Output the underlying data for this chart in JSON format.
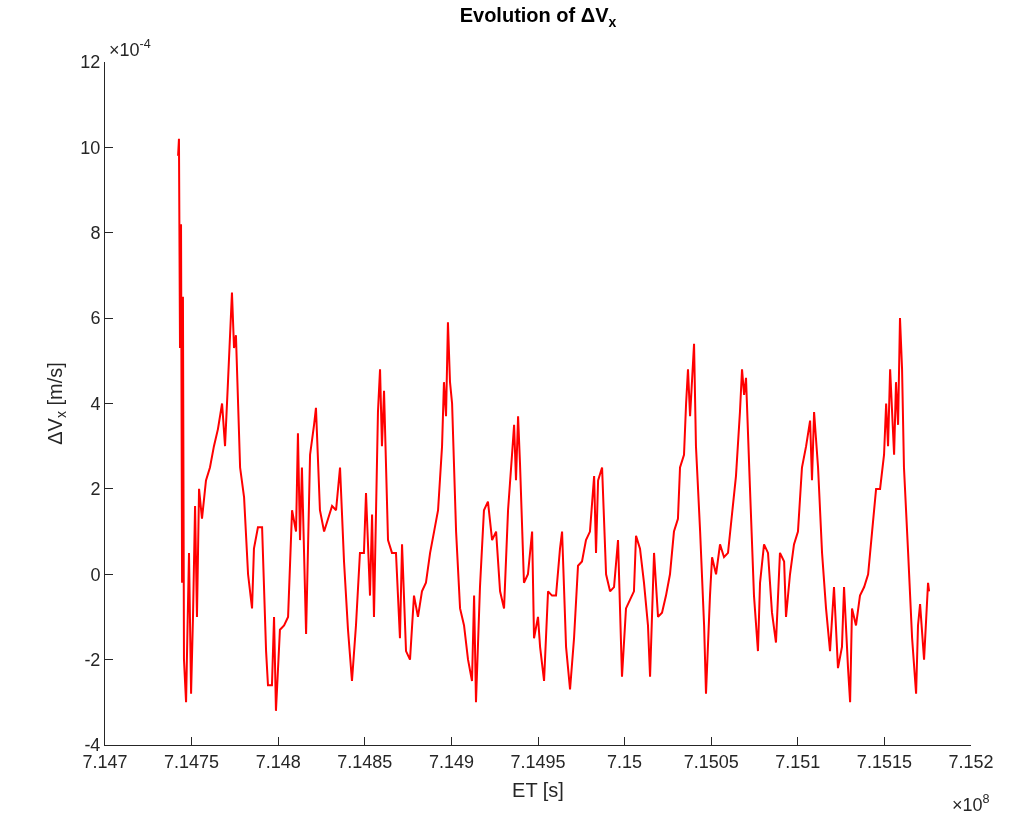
{
  "chart_data": {
    "type": "line",
    "title": "Evolution of ΔV$_{x}$",
    "xlabel": "ET [s]",
    "ylabel": "ΔV$_{x}$ [m/s]",
    "annotations": [
      "×10$^{-4}$",
      "×10$^{8}$"
    ],
    "xlim": [
      7.147,
      7.152
    ],
    "xticks": [
      7.147,
      7.1475,
      7.148,
      7.1485,
      7.149,
      7.1495,
      7.15,
      7.1505,
      7.151,
      7.1515,
      7.152
    ],
    "ylim": [
      -4,
      12
    ],
    "yticks": [
      -4,
      -2,
      0,
      2,
      4,
      6,
      8,
      10,
      12
    ],
    "series": [
      {
        "color": "#ff0000",
        "x": [
          7.147422,
          7.147427,
          7.147433,
          7.147439,
          7.147445,
          7.14745,
          7.147456,
          7.147468,
          7.147485,
          7.147497,
          7.147508,
          7.14752,
          7.147531,
          7.147543,
          7.14756,
          7.147583,
          7.147606,
          7.147629,
          7.147652,
          7.147676,
          7.147693,
          7.14771,
          7.147733,
          7.147745,
          7.147756,
          7.14778,
          7.147803,
          7.147826,
          7.147849,
          7.14786,
          7.147883,
          7.147907,
          7.14793,
          7.147941,
          7.147964,
          7.147976,
          7.147987,
          7.14801,
          7.148034,
          7.148057,
          7.14808,
          7.148103,
          7.148114,
          7.148126,
          7.148137,
          7.148161,
          7.148184,
          7.148207,
          7.148218,
          7.148241,
          7.148265,
          7.148288,
          7.148311,
          7.148334,
          7.148357,
          7.14838,
          7.148403,
          7.148426,
          7.148449,
          7.148472,
          7.148495,
          7.148507,
          7.14853,
          7.148542,
          7.148553,
          7.148576,
          7.148588,
          7.148599,
          7.148611,
          7.148634,
          7.148657,
          7.14868,
          7.148703,
          7.148715,
          7.148738,
          7.148761,
          7.148784,
          7.148807,
          7.14883,
          7.148853,
          7.148877,
          7.1489,
          7.148923,
          7.148946,
          7.148957,
          7.148969,
          7.14898,
          7.148992,
          7.149004,
          7.149027,
          7.14905,
          7.149073,
          7.149096,
          7.149119,
          7.149131,
          7.149142,
          7.149165,
          7.149188,
          7.149211,
          7.149235,
          7.149258,
          7.149281,
          7.149304,
          7.149327,
          7.14935,
          7.149362,
          7.149373,
          7.149385,
          7.149396,
          7.149419,
          7.149442,
          7.149466,
          7.149477,
          7.1495,
          7.149512,
          7.149535,
          7.149558,
          7.149581,
          7.149604,
          7.149627,
          7.149639,
          7.149662,
          7.149685,
          7.149708,
          7.149731,
          7.149754,
          7.149777,
          7.1498,
          7.149824,
          7.149835,
          7.149847,
          7.14987,
          7.149893,
          7.149916,
          7.149939,
          7.149962,
          7.149985,
          7.150008,
          7.150031,
          7.150054,
          7.150066,
          7.150089,
          7.150112,
          7.150135,
          7.150147,
          7.15017,
          7.150193,
          7.150216,
          7.150239,
          7.150262,
          7.150285,
          7.150308,
          7.15032,
          7.150343,
          7.150355,
          7.150366,
          7.150378,
          7.150401,
          7.150412,
          7.150436,
          7.150459,
          7.15047,
          7.150493,
          7.150505,
          7.150528,
          7.150551,
          7.150574,
          7.150597,
          7.15062,
          7.150643,
          7.150666,
          7.150678,
          7.15069,
          7.150701,
          7.150724,
          7.150747,
          7.15077,
          7.150782,
          7.150805,
          7.150828,
          7.150851,
          7.150874,
          7.150897,
          7.150921,
          7.150932,
          7.150955,
          7.150978,
          7.151001,
          7.151024,
          7.151048,
          7.151071,
          7.151082,
          7.151094,
          7.151117,
          7.15114,
          7.151163,
          7.151186,
          7.151209,
          7.151232,
          7.151255,
          7.151267,
          7.15129,
          7.151302,
          7.151313,
          7.151336,
          7.151359,
          7.151383,
          7.151406,
          7.151429,
          7.151452,
          7.151475,
          7.151498,
          7.15151,
          7.151521,
          7.151533,
          7.151556,
          7.151567,
          7.151579,
          7.15159,
          7.151602,
          7.151613,
          7.151637,
          7.15166,
          7.151683,
          7.151694,
          7.151706,
          7.151729,
          7.151752,
          7.151758
        ],
        "values": [
          9.8,
          10.2,
          5.3,
          8.2,
          -0.2,
          6.5,
          -2.0,
          -3.0,
          0.5,
          -2.8,
          -1.0,
          1.6,
          -1.0,
          2.0,
          1.3,
          2.2,
          2.5,
          3.0,
          3.4,
          4.0,
          3.0,
          4.5,
          6.6,
          5.3,
          5.6,
          2.5,
          1.8,
          0.0,
          -0.8,
          0.6,
          1.1,
          1.1,
          -1.8,
          -2.6,
          -2.6,
          -1.0,
          -3.2,
          -1.3,
          -1.2,
          -1.0,
          1.5,
          1.0,
          3.3,
          0.8,
          2.5,
          -1.4,
          2.8,
          3.5,
          3.9,
          1.5,
          1.0,
          1.3,
          1.6,
          1.5,
          2.5,
          0.3,
          -1.3,
          -2.5,
          -1.2,
          0.5,
          0.5,
          1.9,
          -0.5,
          1.4,
          -1.0,
          3.8,
          4.8,
          3.0,
          4.3,
          0.8,
          0.5,
          0.5,
          -1.5,
          0.7,
          -1.8,
          -2.0,
          -0.5,
          -1.0,
          -0.4,
          -0.2,
          0.5,
          1.0,
          1.5,
          3.0,
          4.5,
          3.7,
          5.9,
          4.5,
          4.0,
          1.0,
          -0.8,
          -1.2,
          -2.0,
          -2.5,
          -0.5,
          -3.0,
          -0.3,
          1.5,
          1.7,
          0.8,
          1.0,
          -0.4,
          -0.8,
          1.5,
          2.8,
          3.5,
          2.2,
          3.7,
          2.6,
          -0.2,
          0.0,
          1.0,
          -1.5,
          -1.0,
          -1.7,
          -2.5,
          -0.4,
          -0.5,
          -0.5,
          0.6,
          1.0,
          -1.7,
          -2.7,
          -1.5,
          0.2,
          0.3,
          0.8,
          1.0,
          2.3,
          0.5,
          2.2,
          2.5,
          0.0,
          -0.4,
          -0.3,
          0.8,
          -2.4,
          -0.8,
          -0.6,
          -0.4,
          0.9,
          0.6,
          -0.2,
          -1.2,
          -2.4,
          0.5,
          -1.0,
          -0.9,
          -0.5,
          0.0,
          1.0,
          1.3,
          2.5,
          2.8,
          4.0,
          4.8,
          3.7,
          5.4,
          3.0,
          1.0,
          -1.2,
          -2.8,
          -0.5,
          0.4,
          0.0,
          0.7,
          0.4,
          0.5,
          1.4,
          2.3,
          3.8,
          4.8,
          4.2,
          4.6,
          2.0,
          -0.5,
          -1.8,
          -0.2,
          0.7,
          0.5,
          -0.9,
          -1.6,
          0.5,
          0.3,
          -1.0,
          0.0,
          0.7,
          1.0,
          2.5,
          3.0,
          3.6,
          2.2,
          3.8,
          2.5,
          0.5,
          -0.8,
          -1.8,
          -0.3,
          -2.2,
          -1.7,
          -0.3,
          -2.2,
          -3.0,
          -0.8,
          -1.2,
          -0.5,
          -0.3,
          0.0,
          1.0,
          2.0,
          2.0,
          2.8,
          4.0,
          3.0,
          4.8,
          2.8,
          4.5,
          3.5,
          6.0,
          4.8,
          2.5,
          0.5,
          -1.5,
          -2.8,
          -1.2,
          -0.7,
          -2.0,
          -0.2,
          -0.4
        ]
      }
    ]
  }
}
